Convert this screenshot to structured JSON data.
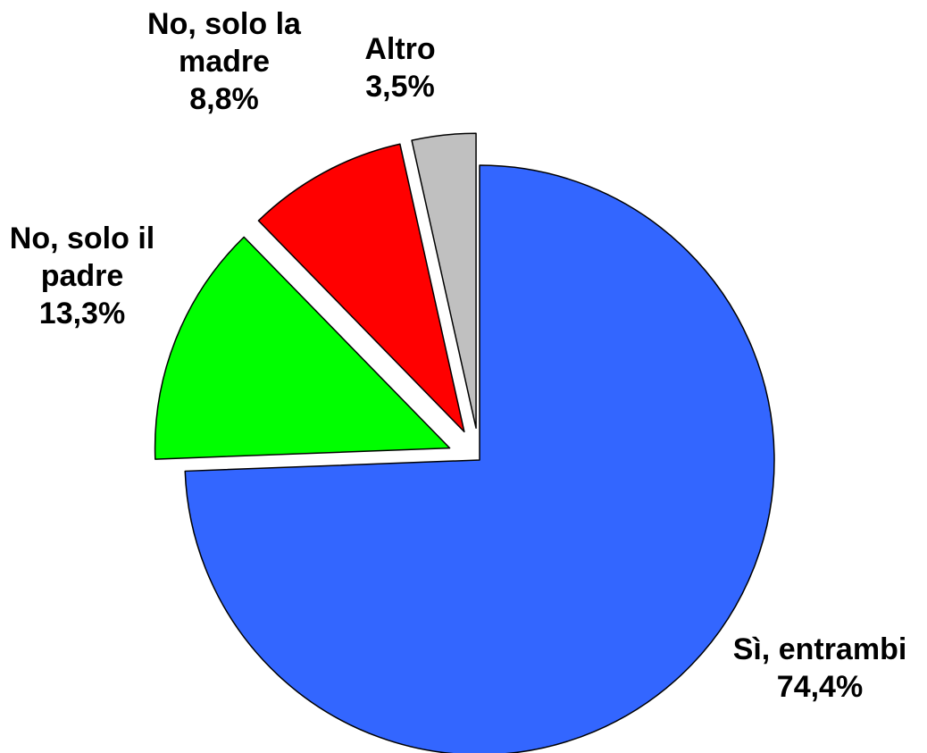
{
  "chart_data": {
    "type": "pie",
    "slices": [
      {
        "key": "si",
        "label_lines": [
          "Sì, entrambi"
        ],
        "value_label": "74,4%",
        "value": 74.4,
        "color": "#3366ff",
        "exploded": false
      },
      {
        "key": "padre",
        "label_lines": [
          "No, solo il",
          "padre"
        ],
        "value_label": "13,3%",
        "value": 13.3,
        "color": "#00ff00",
        "exploded": true
      },
      {
        "key": "madre",
        "label_lines": [
          "No, solo la",
          "madre"
        ],
        "value_label": "8,8%",
        "value": 8.8,
        "color": "#ff0000",
        "exploded": true
      },
      {
        "key": "altro",
        "label_lines": [
          "Altro"
        ],
        "value_label": "3,5%",
        "value": 3.5,
        "color": "#c0c0c0",
        "exploded": true
      }
    ]
  }
}
